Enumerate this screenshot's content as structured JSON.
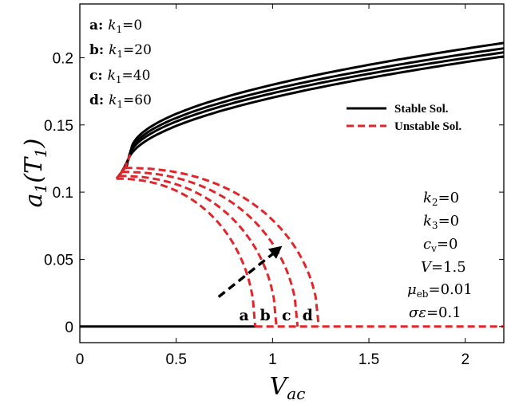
{
  "chart_data": {
    "type": "line",
    "xlabel": "V_ac",
    "ylabel": "a_1(T_1)",
    "xlim": [
      0,
      2.2
    ],
    "ylim": [
      -0.012,
      0.24
    ],
    "xticks": [
      0,
      0.5,
      1,
      1.5,
      2
    ],
    "xtick_labels": [
      "0",
      "0.5",
      "1",
      "1.5",
      "2"
    ],
    "yticks": [
      0,
      0.05,
      0.1,
      0.15,
      0.2
    ],
    "ytick_labels": [
      "0",
      "0.05",
      "0.1",
      "0.15",
      "0.2"
    ],
    "grid": false,
    "legend": {
      "placement": "top-right",
      "entries": [
        {
          "label": "Stable Sol.",
          "style": "solid",
          "color": "#000000"
        },
        {
          "label": "Unstable Sol.",
          "style": "dashed",
          "color": "#e0262b"
        }
      ]
    },
    "series_annotations": [
      {
        "letter": "a",
        "text": "k",
        "sub": "1",
        "value": "=0"
      },
      {
        "letter": "b",
        "text": "k",
        "sub": "1",
        "value": "=20"
      },
      {
        "letter": "c",
        "text": "k",
        "sub": "1",
        "value": "=40"
      },
      {
        "letter": "d",
        "text": "k",
        "sub": "1",
        "value": "=60"
      }
    ],
    "curve_letters": [
      "a",
      "b",
      "c",
      "d"
    ],
    "parameters": [
      {
        "sym": "k",
        "sub": "2",
        "value": "=0"
      },
      {
        "sym": "k",
        "sub": "3",
        "value": "=0"
      },
      {
        "sym": "c",
        "sub": "v",
        "value": "=0"
      },
      {
        "sym": "V",
        "sub": "",
        "value": "=1.5"
      },
      {
        "sym": "μ",
        "sub": "eb",
        "value": "=0.01"
      },
      {
        "sym": "σε",
        "sub": "",
        "value": "=0.1"
      }
    ],
    "series": [
      {
        "id": "a",
        "bifurcation_x": 0.91,
        "turn_x": 0.19,
        "turn_y": 0.11,
        "top_x": 0.245,
        "top_y": 0.12,
        "end_y": 0.201
      },
      {
        "id": "b",
        "bifurcation_x": 1.02,
        "turn_x": 0.205,
        "turn_y": 0.112,
        "top_x": 0.252,
        "top_y": 0.124,
        "end_y": 0.204
      },
      {
        "id": "c",
        "bifurcation_x": 1.13,
        "turn_x": 0.22,
        "turn_y": 0.115,
        "top_x": 0.259,
        "top_y": 0.127,
        "end_y": 0.207
      },
      {
        "id": "d",
        "bifurcation_x": 1.24,
        "turn_x": 0.235,
        "turn_y": 0.118,
        "top_x": 0.265,
        "top_y": 0.13,
        "end_y": 0.211
      }
    ],
    "trivial_solution": {
      "y": 0,
      "stable_until_x": 0.91,
      "unstable_after": true
    },
    "arrow": {
      "from": [
        0.72,
        0.022
      ],
      "to": [
        1.05,
        0.06
      ],
      "color": "#000000",
      "style": "dashed"
    }
  }
}
